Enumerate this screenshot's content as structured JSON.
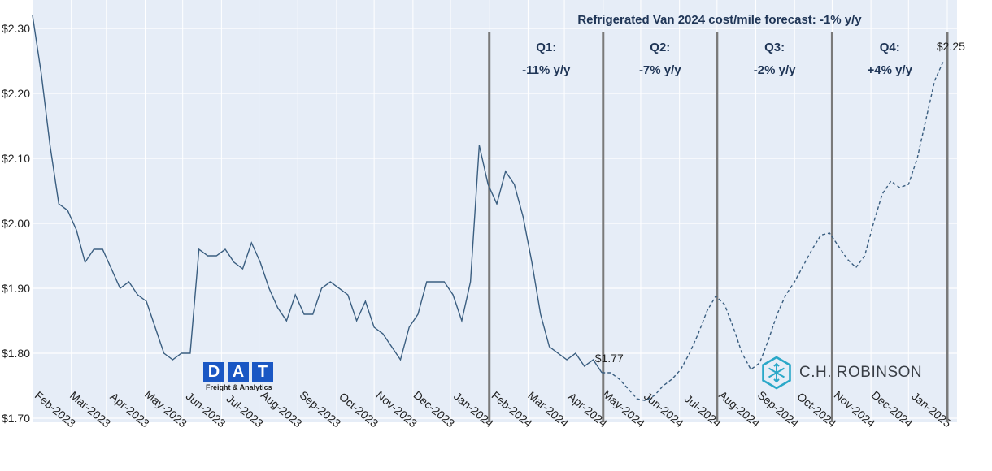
{
  "chart_data": {
    "type": "line",
    "title": "Refrigerated Van 2024 cost/mile forecast: -1% y/y",
    "ylim": [
      1.7,
      2.33
    ],
    "yticks": [
      "$2.30",
      "$2.20",
      "$2.10",
      "$2.00",
      "$1.90",
      "$1.80",
      "$1.70"
    ],
    "ytick_values": [
      2.3,
      2.2,
      2.1,
      2.0,
      1.9,
      1.8,
      1.7
    ],
    "xticks": [
      "Feb-2023",
      "Mar-2023",
      "Apr-2023",
      "May-2023",
      "Jun-2023",
      "Jul-2023",
      "Aug-2023",
      "Sep-2023",
      "Oct-2023",
      "Nov-2023",
      "Dec-2023",
      "Jan-2024",
      "Feb-2024",
      "Mar-2024",
      "Apr-2024",
      "May-2024",
      "Jun-2024",
      "Jul-2024",
      "Aug-2024",
      "Sep-2024",
      "Oct-2024",
      "Nov-2024",
      "Dec-2024",
      "Jan-2025"
    ],
    "grid": true,
    "series": [
      {
        "style": "solid",
        "color": "#3a5e80",
        "x": [
          "2023-01-01",
          "2023-01-08",
          "2023-01-15",
          "2023-01-22",
          "2023-01-29",
          "2023-02-05",
          "2023-02-12",
          "2023-02-19",
          "2023-02-26",
          "2023-03-05",
          "2023-03-12",
          "2023-03-19",
          "2023-03-26",
          "2023-04-02",
          "2023-04-09",
          "2023-04-16",
          "2023-04-23",
          "2023-04-30",
          "2023-05-07",
          "2023-05-14",
          "2023-05-21",
          "2023-05-28",
          "2023-06-04",
          "2023-06-11",
          "2023-06-18",
          "2023-06-25",
          "2023-07-02",
          "2023-07-09",
          "2023-07-16",
          "2023-07-23",
          "2023-07-30",
          "2023-08-06",
          "2023-08-13",
          "2023-08-20",
          "2023-08-27",
          "2023-09-03",
          "2023-09-10",
          "2023-09-17",
          "2023-09-24",
          "2023-10-01",
          "2023-10-08",
          "2023-10-15",
          "2023-10-22",
          "2023-10-29",
          "2023-11-05",
          "2023-11-12",
          "2023-11-19",
          "2023-11-26",
          "2023-12-03",
          "2023-12-10",
          "2023-12-17",
          "2023-12-24",
          "2023-12-31",
          "2024-01-07",
          "2024-01-14",
          "2024-01-21",
          "2024-01-28",
          "2024-02-04",
          "2024-02-11",
          "2024-02-18",
          "2024-02-25",
          "2024-03-03",
          "2024-03-10",
          "2024-03-17",
          "2024-03-24",
          "2024-03-31"
        ],
        "values": [
          2.32,
          2.23,
          2.12,
          2.03,
          2.02,
          1.99,
          1.94,
          1.96,
          1.96,
          1.93,
          1.9,
          1.91,
          1.89,
          1.88,
          1.84,
          1.8,
          1.79,
          1.8,
          1.8,
          1.96,
          1.95,
          1.95,
          1.96,
          1.94,
          1.93,
          1.97,
          1.94,
          1.9,
          1.87,
          1.85,
          1.89,
          1.86,
          1.86,
          1.9,
          1.91,
          1.9,
          1.89,
          1.85,
          1.88,
          1.84,
          1.83,
          1.81,
          1.79,
          1.84,
          1.86,
          1.91,
          1.91,
          1.91,
          1.89,
          1.85,
          1.91,
          2.12,
          2.06,
          2.03,
          2.08,
          2.06,
          2.01,
          1.94,
          1.86,
          1.81,
          1.8,
          1.79,
          1.8,
          1.78,
          1.79,
          1.77
        ]
      },
      {
        "style": "dashed",
        "color": "#3a5e80",
        "x": [
          "2024-03-31",
          "2024-04-07",
          "2024-04-14",
          "2024-04-21",
          "2024-04-28",
          "2024-05-05",
          "2024-05-12",
          "2024-05-19",
          "2024-05-26",
          "2024-06-02",
          "2024-06-09",
          "2024-06-16",
          "2024-06-23",
          "2024-06-30",
          "2024-07-07",
          "2024-07-14",
          "2024-07-21",
          "2024-07-28",
          "2024-08-04",
          "2024-08-11",
          "2024-08-18",
          "2024-08-25",
          "2024-09-01",
          "2024-09-08",
          "2024-09-15",
          "2024-09-22",
          "2024-09-29",
          "2024-10-06",
          "2024-10-13",
          "2024-10-20",
          "2024-10-27",
          "2024-11-03",
          "2024-11-10",
          "2024-11-17",
          "2024-11-24",
          "2024-12-01",
          "2024-12-08",
          "2024-12-15",
          "2024-12-22",
          "2024-12-29"
        ],
        "values": [
          1.77,
          1.77,
          1.76,
          1.745,
          1.73,
          1.727,
          1.735,
          1.75,
          1.76,
          1.775,
          1.8,
          1.83,
          1.865,
          1.888,
          1.875,
          1.84,
          1.8,
          1.775,
          1.785,
          1.82,
          1.86,
          1.89,
          1.91,
          1.935,
          1.96,
          1.982,
          1.985,
          1.965,
          1.945,
          1.932,
          1.95,
          2.0,
          2.045,
          2.065,
          2.055,
          2.06,
          2.1,
          2.16,
          2.22,
          2.25
        ]
      }
    ],
    "dividers": [
      "2024-01-01",
      "2024-04-01",
      "2024-07-01",
      "2024-10-01",
      "2025-01-01"
    ],
    "quarters": [
      {
        "name": "Q1:",
        "change": "-11% y/y"
      },
      {
        "name": "Q2:",
        "change": "-7% y/y"
      },
      {
        "name": "Q3:",
        "change": "-2% y/y"
      },
      {
        "name": "Q4:",
        "change": "+4% y/y"
      }
    ],
    "annotations": [
      {
        "text": "$1.77",
        "x": "2024-03-31",
        "y": 1.77
      },
      {
        "text": "$2.25",
        "x": "2024-12-29",
        "y": 2.25
      }
    ]
  },
  "logos": {
    "dat_letters": [
      "D",
      "A",
      "T"
    ],
    "dat_subtitle": "Freight & Analytics",
    "dat_color": "#1a57c4",
    "chr_text": "C.H. ROBINSON",
    "chr_icon": "snowflake-cube-icon",
    "chr_color": "#2aa8c8"
  },
  "colors": {
    "plot_bg": "#e6edf7",
    "line": "#3a5e80",
    "divider": "#7a7a7a",
    "label": "#1f3556"
  }
}
